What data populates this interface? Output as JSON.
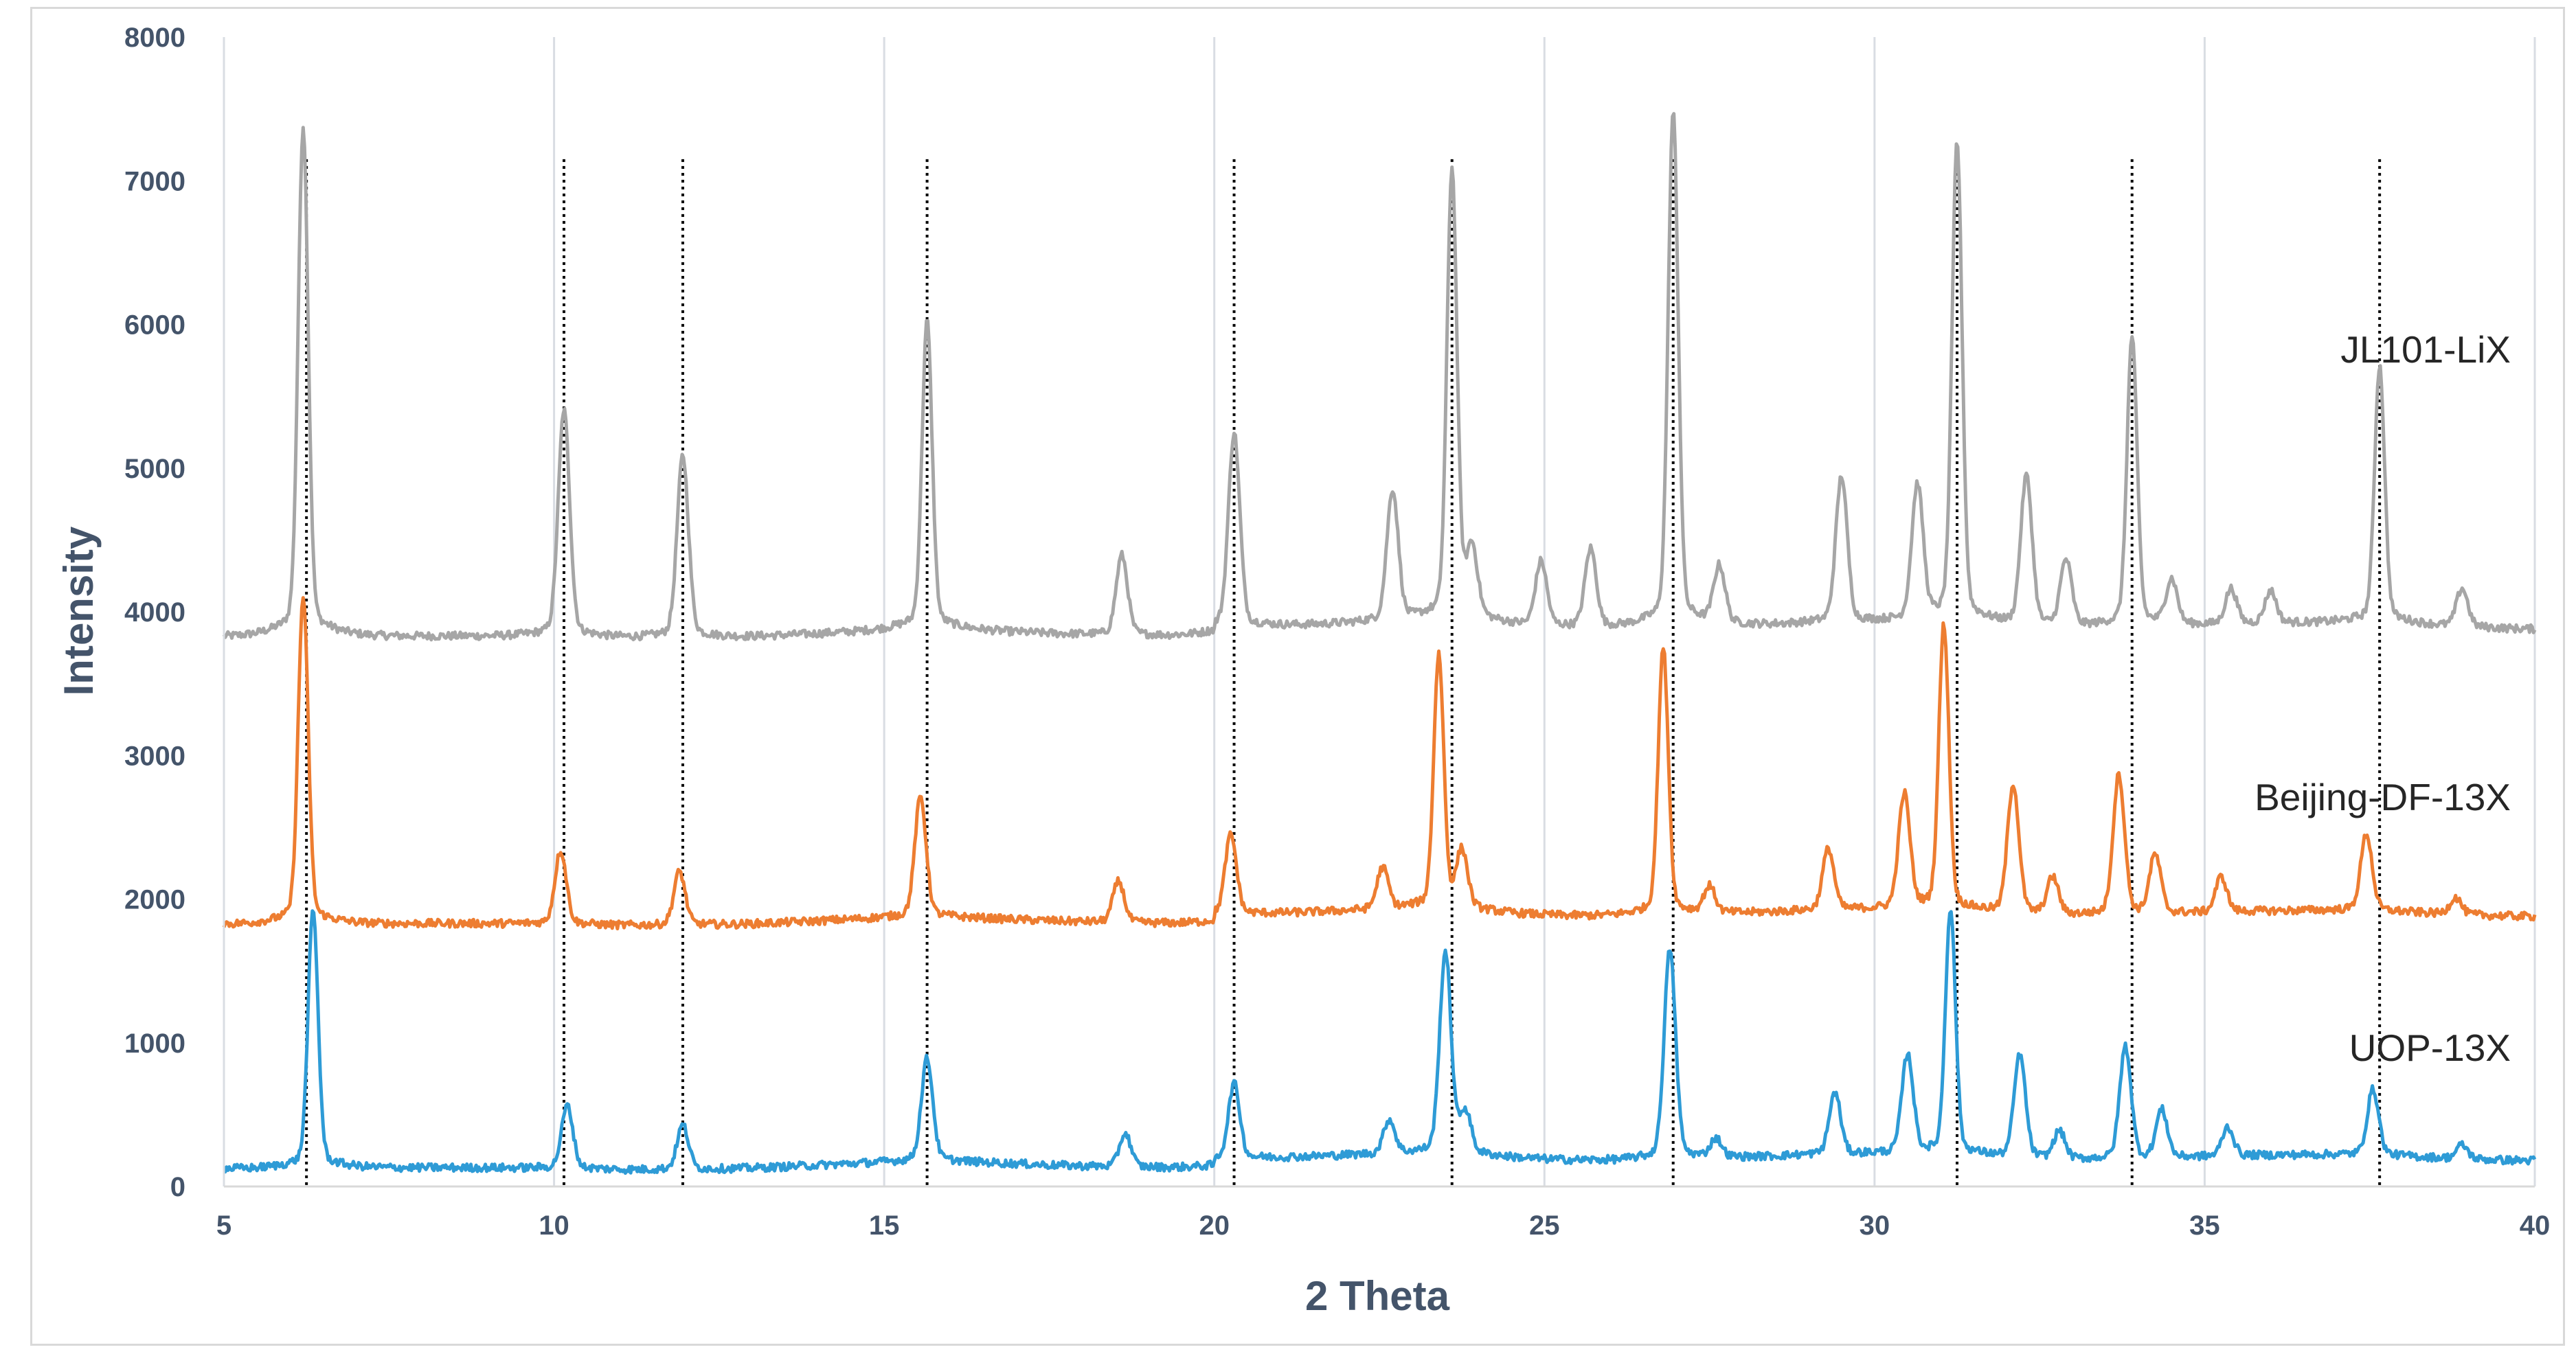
{
  "chart_data": {
    "type": "line",
    "xlabel": "2 Theta",
    "ylabel": "Intensity",
    "xlim": [
      5,
      40
    ],
    "ylim": [
      0,
      8000
    ],
    "x_ticks": [
      "5",
      "10",
      "15",
      "20",
      "25",
      "30",
      "35",
      "40"
    ],
    "y_ticks": [
      "0",
      "1000",
      "2000",
      "3000",
      "4000",
      "5000",
      "6000",
      "7000",
      "8000"
    ],
    "grid": "vertical",
    "reference_lines_x": [
      6.25,
      10.15,
      11.95,
      15.65,
      20.3,
      23.6,
      26.95,
      31.25,
      33.9,
      37.65
    ],
    "series": [
      {
        "name": "JL101-LiX",
        "color": "#a6a6a6",
        "baseline": 3850,
        "peaks": [
          {
            "x": 6.2,
            "y": 7150
          },
          {
            "x": 10.15,
            "y": 5320
          },
          {
            "x": 11.95,
            "y": 5030
          },
          {
            "x": 15.65,
            "y": 5850
          },
          {
            "x": 18.6,
            "y": 4370
          },
          {
            "x": 20.3,
            "y": 5110
          },
          {
            "x": 22.7,
            "y": 4700
          },
          {
            "x": 23.6,
            "y": 6780
          },
          {
            "x": 23.9,
            "y": 4300
          },
          {
            "x": 24.95,
            "y": 4270
          },
          {
            "x": 25.7,
            "y": 4360
          },
          {
            "x": 26.95,
            "y": 7180
          },
          {
            "x": 27.65,
            "y": 4220
          },
          {
            "x": 29.5,
            "y": 4800
          },
          {
            "x": 30.65,
            "y": 4720
          },
          {
            "x": 31.25,
            "y": 6960
          },
          {
            "x": 32.3,
            "y": 4820
          },
          {
            "x": 32.9,
            "y": 4280
          },
          {
            "x": 33.9,
            "y": 5730
          },
          {
            "x": 34.5,
            "y": 4140
          },
          {
            "x": 35.4,
            "y": 4080
          },
          {
            "x": 36.0,
            "y": 4060
          },
          {
            "x": 37.65,
            "y": 5520
          },
          {
            "x": 38.9,
            "y": 4100
          }
        ]
      },
      {
        "name": "Beijing-DF-13X",
        "color": "#ed7d31",
        "baseline": 1850,
        "peaks": [
          {
            "x": 6.2,
            "y": 3970
          },
          {
            "x": 10.1,
            "y": 2330
          },
          {
            "x": 11.9,
            "y": 2200
          },
          {
            "x": 15.55,
            "y": 2630
          },
          {
            "x": 18.55,
            "y": 2120
          },
          {
            "x": 20.25,
            "y": 2370
          },
          {
            "x": 22.55,
            "y": 2120
          },
          {
            "x": 23.4,
            "y": 3500
          },
          {
            "x": 23.75,
            "y": 2220
          },
          {
            "x": 26.8,
            "y": 3580
          },
          {
            "x": 27.5,
            "y": 2020
          },
          {
            "x": 29.3,
            "y": 2250
          },
          {
            "x": 30.45,
            "y": 2590
          },
          {
            "x": 31.05,
            "y": 3700
          },
          {
            "x": 32.1,
            "y": 2690
          },
          {
            "x": 32.7,
            "y": 2090
          },
          {
            "x": 33.7,
            "y": 2760
          },
          {
            "x": 34.25,
            "y": 2230
          },
          {
            "x": 35.25,
            "y": 2080
          },
          {
            "x": 37.45,
            "y": 2350
          },
          {
            "x": 38.8,
            "y": 1960
          }
        ]
      },
      {
        "name": "UOP-13X",
        "color": "#2e9bd6",
        "baseline": 150,
        "peaks": [
          {
            "x": 6.35,
            "y": 1820
          },
          {
            "x": 10.2,
            "y": 560
          },
          {
            "x": 11.95,
            "y": 440
          },
          {
            "x": 15.65,
            "y": 820
          },
          {
            "x": 18.65,
            "y": 370
          },
          {
            "x": 20.3,
            "y": 640
          },
          {
            "x": 22.65,
            "y": 370
          },
          {
            "x": 23.5,
            "y": 1460
          },
          {
            "x": 23.8,
            "y": 420
          },
          {
            "x": 26.9,
            "y": 1510
          },
          {
            "x": 27.6,
            "y": 270
          },
          {
            "x": 29.4,
            "y": 550
          },
          {
            "x": 30.5,
            "y": 790
          },
          {
            "x": 31.15,
            "y": 1750
          },
          {
            "x": 32.2,
            "y": 820
          },
          {
            "x": 32.8,
            "y": 330
          },
          {
            "x": 33.8,
            "y": 880
          },
          {
            "x": 34.35,
            "y": 460
          },
          {
            "x": 35.35,
            "y": 340
          },
          {
            "x": 37.55,
            "y": 580
          },
          {
            "x": 38.9,
            "y": 240
          }
        ]
      }
    ]
  }
}
